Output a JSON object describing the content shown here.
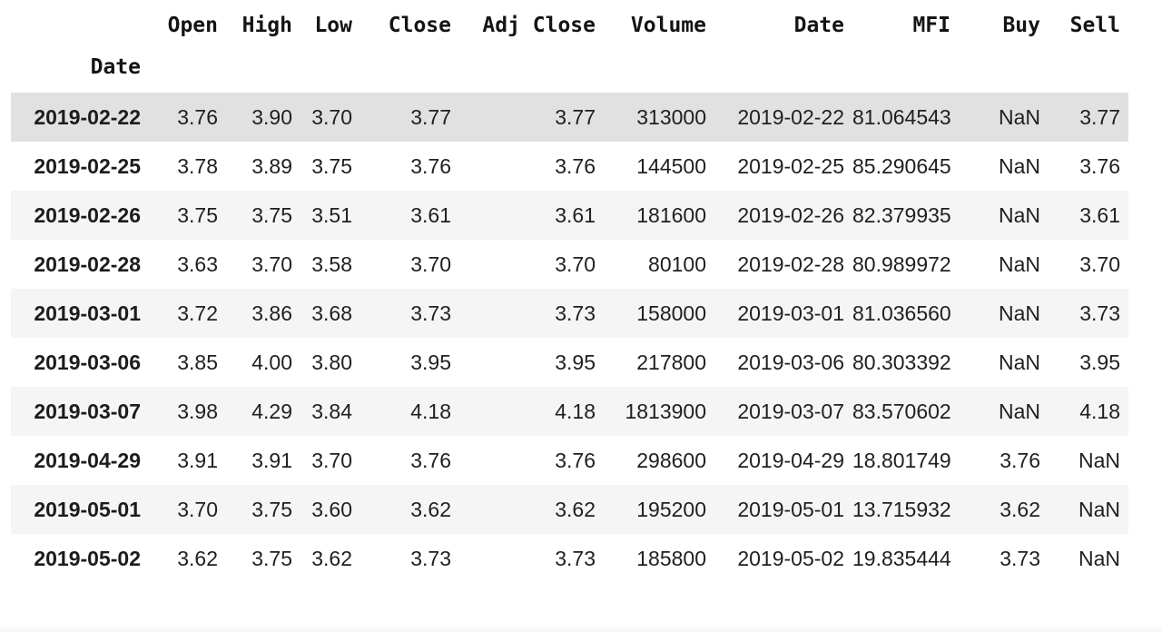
{
  "colors": {
    "highlight_row_bg": "#e1e1e1",
    "stripe_row_bg": "#f5f5f5",
    "plain_row_bg": "#ffffff",
    "header_text": "#141414",
    "cell_text": "#1f1f1f"
  },
  "table": {
    "index_name": "Date",
    "columns": [
      "Open",
      "High",
      "Low",
      "Close",
      "Adj Close",
      "Volume",
      "Date",
      "MFI",
      "Buy",
      "Sell"
    ],
    "rows": [
      {
        "index": "2019-02-22",
        "highlighted": true,
        "cells": [
          "3.76",
          "3.90",
          "3.70",
          "3.77",
          "3.77",
          "313000",
          "2019-02-22",
          "81.064543",
          "NaN",
          "3.77"
        ]
      },
      {
        "index": "2019-02-25",
        "highlighted": false,
        "cells": [
          "3.78",
          "3.89",
          "3.75",
          "3.76",
          "3.76",
          "144500",
          "2019-02-25",
          "85.290645",
          "NaN",
          "3.76"
        ]
      },
      {
        "index": "2019-02-26",
        "highlighted": false,
        "cells": [
          "3.75",
          "3.75",
          "3.51",
          "3.61",
          "3.61",
          "181600",
          "2019-02-26",
          "82.379935",
          "NaN",
          "3.61"
        ]
      },
      {
        "index": "2019-02-28",
        "highlighted": false,
        "cells": [
          "3.63",
          "3.70",
          "3.58",
          "3.70",
          "3.70",
          "80100",
          "2019-02-28",
          "80.989972",
          "NaN",
          "3.70"
        ]
      },
      {
        "index": "2019-03-01",
        "highlighted": false,
        "cells": [
          "3.72",
          "3.86",
          "3.68",
          "3.73",
          "3.73",
          "158000",
          "2019-03-01",
          "81.036560",
          "NaN",
          "3.73"
        ]
      },
      {
        "index": "2019-03-06",
        "highlighted": false,
        "cells": [
          "3.85",
          "4.00",
          "3.80",
          "3.95",
          "3.95",
          "217800",
          "2019-03-06",
          "80.303392",
          "NaN",
          "3.95"
        ]
      },
      {
        "index": "2019-03-07",
        "highlighted": false,
        "cells": [
          "3.98",
          "4.29",
          "3.84",
          "4.18",
          "4.18",
          "1813900",
          "2019-03-07",
          "83.570602",
          "NaN",
          "4.18"
        ]
      },
      {
        "index": "2019-04-29",
        "highlighted": false,
        "cells": [
          "3.91",
          "3.91",
          "3.70",
          "3.76",
          "3.76",
          "298600",
          "2019-04-29",
          "18.801749",
          "3.76",
          "NaN"
        ]
      },
      {
        "index": "2019-05-01",
        "highlighted": false,
        "cells": [
          "3.70",
          "3.75",
          "3.60",
          "3.62",
          "3.62",
          "195200",
          "2019-05-01",
          "13.715932",
          "3.62",
          "NaN"
        ]
      },
      {
        "index": "2019-05-02",
        "highlighted": false,
        "cells": [
          "3.62",
          "3.75",
          "3.62",
          "3.73",
          "3.73",
          "185800",
          "2019-05-02",
          "19.835444",
          "3.73",
          "NaN"
        ]
      }
    ]
  }
}
